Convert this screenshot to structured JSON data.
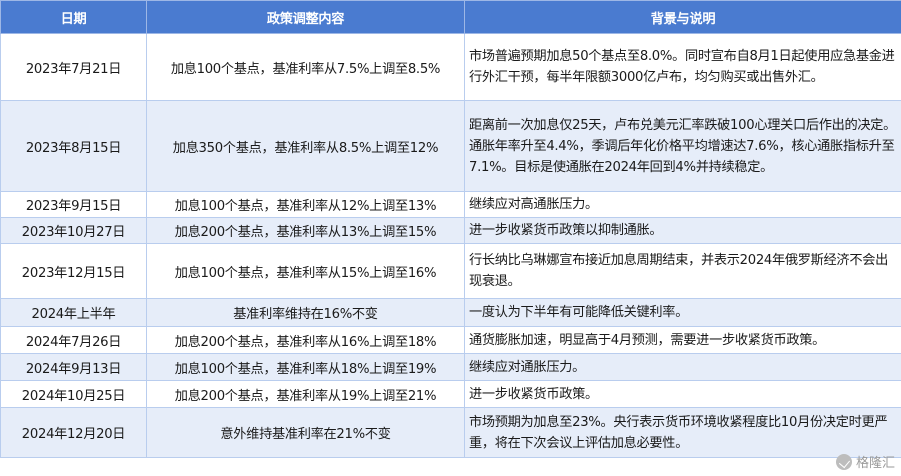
{
  "table": {
    "headers": {
      "date": "日期",
      "policy": "政策调整内容",
      "background": "背景与说明"
    },
    "rows": [
      {
        "date": "2023年7月21日",
        "policy": "加息100个基点，基准利率从7.5%上调至8.5%",
        "background": "市场普遍预期加息50个基点至8.0%。同时宣布自8月1日起使用应急基金进行外汇干预，每半年限额3000亿卢布，均匀购买或出售外汇。"
      },
      {
        "date": "2023年8月15日",
        "policy": "加息350个基点，基准利率从8.5%上调至12%",
        "background": "距离前一次加息仅25天，卢布兑美元汇率跌破100心理关口后作出的决定。通胀年率升至4.4%，季调后年化价格平均增速达7.6%，核心通胀指标升至7.1%。目标是使通胀在2024年回到4%并持续稳定。"
      },
      {
        "date": "2023年9月15日",
        "policy": "加息100个基点，基准利率从12%上调至13%",
        "background": "继续应对高通胀压力。"
      },
      {
        "date": "2023年10月27日",
        "policy": "加息200个基点，基准利率从13%上调至15%",
        "background": "进一步收紧货币政策以抑制通胀。"
      },
      {
        "date": "2023年12月15日",
        "policy": "加息100个基点，基准利率从15%上调至16%",
        "background": "行长纳比乌琳娜宣布接近加息周期结束，并表示2024年俄罗斯经济不会出现衰退。"
      },
      {
        "date": "2024年上半年",
        "policy": "基准利率维持在16%不变",
        "background": "一度认为下半年有可能降低关键利率。"
      },
      {
        "date": "2024年7月26日",
        "policy": "加息200个基点，基准利率从16%上调至18%",
        "background": "通货膨胀加速，明显高于4月预测，需要进一步收紧货币政策。"
      },
      {
        "date": "2024年9月13日",
        "policy": "加息100个基点，基准利率从18%上调至19%",
        "background": "继续应对通胀压力。"
      },
      {
        "date": "2024年10月25日",
        "policy": "加息200个基点，基准利率从19%上调至21%",
        "background": "进一步收紧货币政策。"
      },
      {
        "date": "2024年12月20日",
        "policy": "意外维持基准利率在21%不变",
        "background": "市场预期为加息至23%。央行表示货币环境收紧程度比10月份决定时更严重，将在下次会议上评估加息必要性。"
      }
    ]
  },
  "watermark": {
    "text": "格隆汇",
    "icon": "gelonghui-logo-icon"
  }
}
